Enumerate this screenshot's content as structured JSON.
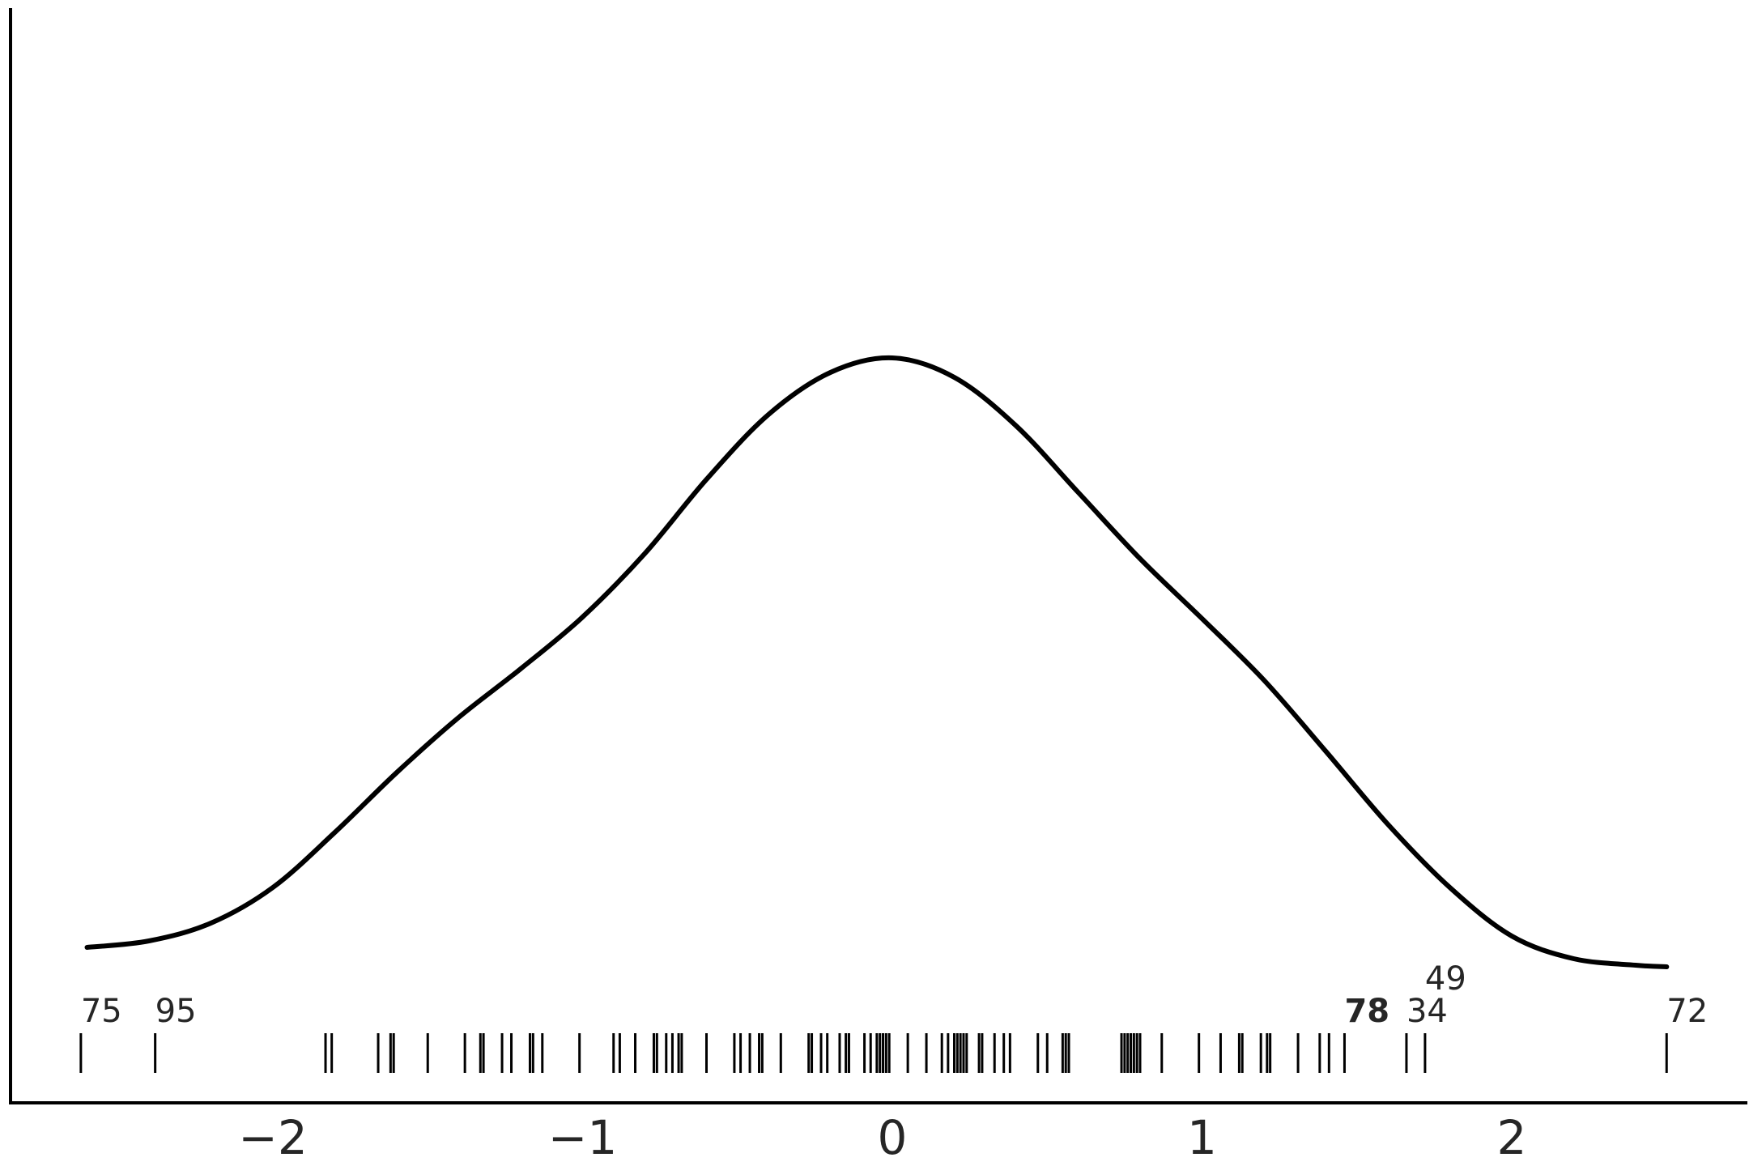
{
  "chart_data": {
    "type": "line",
    "title": "",
    "xlabel": "",
    "ylabel": "",
    "xlim": [
      -2.65,
      2.75
    ],
    "ylim": [
      0,
      0.52
    ],
    "x_ticks": [
      -2,
      -1,
      0,
      1,
      2
    ],
    "x_tick_labels": [
      "−2",
      "−1",
      "0",
      "1",
      "2"
    ],
    "y_ticks_shown": false,
    "grid": false,
    "legend": "none",
    "series": [
      {
        "kind": "kde",
        "color": "#000000",
        "x": [
          -2.6,
          -2.4,
          -2.2,
          -2.0,
          -1.8,
          -1.6,
          -1.4,
          -1.2,
          -1.0,
          -0.8,
          -0.6,
          -0.4,
          -0.2,
          0.0,
          0.2,
          0.4,
          0.6,
          0.8,
          1.0,
          1.2,
          1.4,
          1.6,
          1.8,
          2.0,
          2.2,
          2.4,
          2.5
        ],
        "y": [
          0.096,
          0.1,
          0.111,
          0.133,
          0.167,
          0.204,
          0.238,
          0.268,
          0.3,
          0.339,
          0.385,
          0.425,
          0.451,
          0.46,
          0.448,
          0.418,
          0.377,
          0.336,
          0.299,
          0.261,
          0.217,
          0.172,
          0.133,
          0.103,
          0.089,
          0.085,
          0.084
        ]
      }
    ],
    "rug": {
      "color": "#000000",
      "x": [
        -2.62,
        -2.38,
        -1.83,
        -1.81,
        -1.66,
        -1.62,
        -1.61,
        -1.5,
        -1.38,
        -1.33,
        -1.32,
        -1.26,
        -1.23,
        -1.17,
        -1.16,
        -1.13,
        -1.01,
        -0.9,
        -0.88,
        -0.83,
        -0.77,
        -0.76,
        -0.73,
        -0.71,
        -0.69,
        -0.68,
        -0.6,
        -0.51,
        -0.49,
        -0.46,
        -0.43,
        -0.42,
        -0.36,
        -0.27,
        -0.26,
        -0.23,
        -0.21,
        -0.17,
        -0.15,
        -0.14,
        -0.09,
        -0.07,
        -0.05,
        -0.04,
        -0.03,
        -0.02,
        -0.01,
        0.05,
        0.11,
        0.16,
        0.18,
        0.2,
        0.21,
        0.22,
        0.23,
        0.24,
        0.28,
        0.29,
        0.33,
        0.36,
        0.38,
        0.47,
        0.5,
        0.55,
        0.56,
        0.57,
        0.74,
        0.75,
        0.76,
        0.77,
        0.78,
        0.79,
        0.8,
        0.87,
        0.99,
        1.06,
        1.12,
        1.13,
        1.19,
        1.21,
        1.22,
        1.31,
        1.38,
        1.41,
        1.46,
        1.66,
        1.72,
        2.5
      ]
    },
    "annotations": [
      {
        "text": "75",
        "x": -2.62,
        "row": 0,
        "bold": false
      },
      {
        "text": "95",
        "x": -2.38,
        "row": 0,
        "bold": false
      },
      {
        "text": "78",
        "x": 1.46,
        "row": 0,
        "bold": true
      },
      {
        "text": "34",
        "x": 1.66,
        "row": 0,
        "bold": false
      },
      {
        "text": "49",
        "x": 1.72,
        "row": 1,
        "bold": false
      },
      {
        "text": "72",
        "x": 2.5,
        "row": 0,
        "bold": false
      }
    ]
  }
}
